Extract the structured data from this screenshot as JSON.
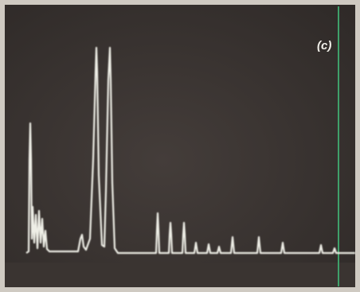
{
  "label": "(c)"
}
